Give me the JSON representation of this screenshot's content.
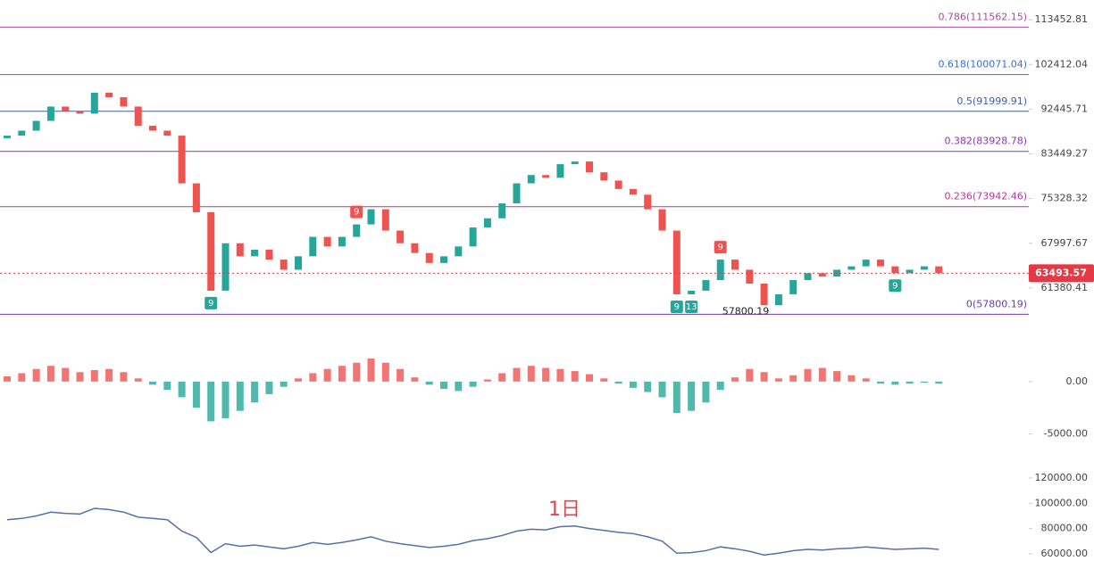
{
  "chart_data": [
    {
      "type": "candlestick",
      "log_scale": true,
      "up_color": "#26a69a",
      "down_color": "#ef5350",
      "ylim": [
        56900,
        118700
      ],
      "yticks": [
        113452.81,
        102412.04,
        92445.71,
        83449.27,
        75328.32,
        67997.67,
        61380.41
      ],
      "open": [
        86500,
        87000,
        88000,
        90000,
        93000,
        92000,
        91500,
        96000,
        95000,
        93000,
        89000,
        88000,
        87000,
        78000,
        73000,
        61000,
        68000,
        66000,
        67000,
        65500,
        64000,
        66000,
        69000,
        67500,
        69000,
        71000,
        73500,
        70000,
        68000,
        66500,
        65000,
        66000,
        67500,
        70500,
        72000,
        74500,
        78000,
        79500,
        79000,
        81500,
        82000,
        80000,
        78500,
        77000,
        76000,
        73500,
        70000,
        60500,
        61000,
        62500,
        65500,
        64000,
        62000,
        59000,
        60500,
        62500,
        63500,
        63000,
        64000,
        64500,
        65500,
        64500,
        63500,
        64000,
        64500
      ],
      "close": [
        87000,
        88000,
        90000,
        93000,
        92000,
        91500,
        96000,
        95000,
        93000,
        89000,
        88000,
        87000,
        78000,
        73000,
        61000,
        68000,
        66000,
        67000,
        65500,
        64000,
        66000,
        69000,
        67500,
        69000,
        71000,
        73500,
        70000,
        68000,
        66500,
        65000,
        66000,
        67500,
        70500,
        72000,
        74500,
        78000,
        79500,
        79000,
        81500,
        82000,
        80000,
        78500,
        77000,
        76000,
        73500,
        70000,
        60500,
        61000,
        62500,
        65500,
        64000,
        62000,
        59000,
        60500,
        62500,
        63500,
        63000,
        64000,
        64500,
        65500,
        64500,
        63500,
        64000,
        64500,
        63493.57
      ],
      "fib_levels": [
        {
          "value": 111562.15,
          "label": "0.786(111562.15)",
          "color": "#b5479f"
        },
        {
          "value": 100071.04,
          "label": "0.618(100071.04)",
          "color": "#3b6fc9"
        },
        {
          "value": 91999.91,
          "label": "0.5(91999.91)",
          "color": "#3b5db0"
        },
        {
          "value": 83928.78,
          "label": "0.382(83928.78)",
          "color": "#8a3aa8"
        },
        {
          "value": 73942.46,
          "label": "0.236(73942.46)",
          "color": "#b03a9a"
        },
        {
          "value": 57800.19,
          "label": "0(57800.19)",
          "color": "#6b3ab0"
        }
      ],
      "td_labels": [
        {
          "label": "9",
          "candle": 14,
          "side": "below",
          "color": "#26a69a"
        },
        {
          "label": "9",
          "candle": 24,
          "side": "above",
          "color": "#ef5350"
        },
        {
          "label": "9",
          "candle": 46,
          "side": "below",
          "color": "#26a69a"
        },
        {
          "label": "13",
          "candle": 47,
          "side": "below",
          "color": "#26a69a"
        },
        {
          "label": "9",
          "candle": 49,
          "side": "above",
          "color": "#ef5350"
        },
        {
          "label": "9",
          "candle": 61,
          "side": "below",
          "color": "#26a69a"
        }
      ]
    },
    {
      "type": "bar",
      "up_color": "#ef5350",
      "down_color": "#26a69a",
      "ylim": [
        -7000,
        4500
      ],
      "yticks": [
        {
          "value": 0,
          "label": "0.00"
        },
        {
          "value": -5000,
          "label": "-5000.00"
        }
      ],
      "values": [
        500,
        800,
        1200,
        1500,
        1300,
        900,
        1100,
        1200,
        900,
        300,
        -300,
        -800,
        -1500,
        -2500,
        -3800,
        -3500,
        -2800,
        -2000,
        -1200,
        -500,
        300,
        800,
        1200,
        1500,
        1800,
        2200,
        1800,
        1200,
        400,
        -300,
        -700,
        -900,
        -500,
        200,
        800,
        1300,
        1500,
        1300,
        1200,
        1000,
        700,
        300,
        -200,
        -600,
        -1000,
        -1500,
        -3000,
        -2800,
        -2000,
        -800,
        400,
        1200,
        900,
        300,
        600,
        1200,
        1300,
        1000,
        600,
        300,
        -200,
        -300,
        -200,
        -100,
        -200
      ]
    },
    {
      "type": "line",
      "color": "#5a6ea8",
      "annotation": "1日",
      "ylim": [
        48000,
        124200
      ],
      "yticks": [
        {
          "value": 120000,
          "label": "120000.00"
        },
        {
          "value": 100000,
          "label": "100000.00"
        },
        {
          "value": 80000,
          "label": "80000.00"
        },
        {
          "value": 60000,
          "label": "60000.00"
        }
      ]
    }
  ]
}
